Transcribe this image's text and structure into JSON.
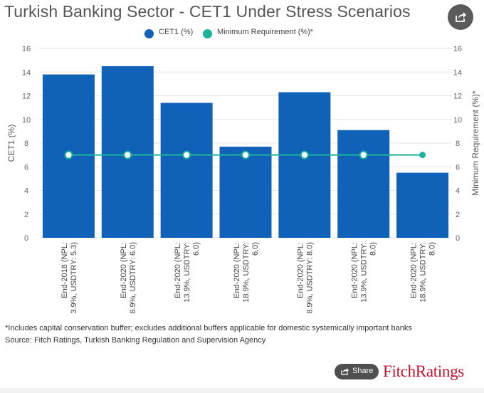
{
  "header": {
    "title": "Turkish Banking Sector - CET1 Under Stress Scenarios"
  },
  "legend": {
    "series1": "CET1 (%)",
    "series2": "Minimum Requirement (%)*"
  },
  "colors": {
    "bar": "#0f62b8",
    "line": "#1fb29a",
    "grid": "#e6e6e6",
    "axis_text": "#666666"
  },
  "chart_data": {
    "type": "bar",
    "title": "Turkish Banking Sector - CET1 Under Stress Scenarios",
    "categories": [
      [
        "End-2018 (NPL:",
        "3.9%, USDTRY: 5.3)"
      ],
      [
        "End-2020 (NPL:",
        "8.9%, USDTRY: 6.0)"
      ],
      [
        "End-2020 (NPL:",
        "13.9%, USDTRY:",
        "6.0)"
      ],
      [
        "End-2020 (NPL:",
        "18.9%, USDTRY:",
        "6.0)"
      ],
      [
        "End-2020 (NPL:",
        "8.9%, USDTRY: 8.0)"
      ],
      [
        "End-2020 (NPL:",
        "13.9%, USDTRY:",
        "8.0)"
      ],
      [
        "End-2020 (NPL:",
        "18.9%, USDTRY:",
        "8.0)"
      ]
    ],
    "series": [
      {
        "name": "CET1 (%)",
        "type": "bar",
        "values": [
          13.8,
          14.5,
          11.4,
          7.7,
          12.3,
          9.1,
          5.5
        ]
      },
      {
        "name": "Minimum Requirement (%)*",
        "type": "line",
        "values": [
          7.0,
          7.0,
          7.0,
          7.0,
          7.0,
          7.0,
          7.0
        ]
      }
    ],
    "ylabel": "CET1 (%)",
    "y2label": "Minimum Requirement (%)*",
    "ylim": [
      0,
      16
    ],
    "y2lim": [
      0,
      16
    ],
    "yticks": [
      0,
      2,
      4,
      6,
      8,
      10,
      12,
      14,
      16
    ],
    "grid": true,
    "legend": "top-center"
  },
  "footer": {
    "note": "*Includes capital conservation buffer; excludes additional buffers applicable for domestic systemically important banks",
    "source": "Source: Fitch Ratings, Turkish Banking Regulation and Supervision Agency",
    "share_label": "Share",
    "brand_name": "FitchRatings"
  }
}
